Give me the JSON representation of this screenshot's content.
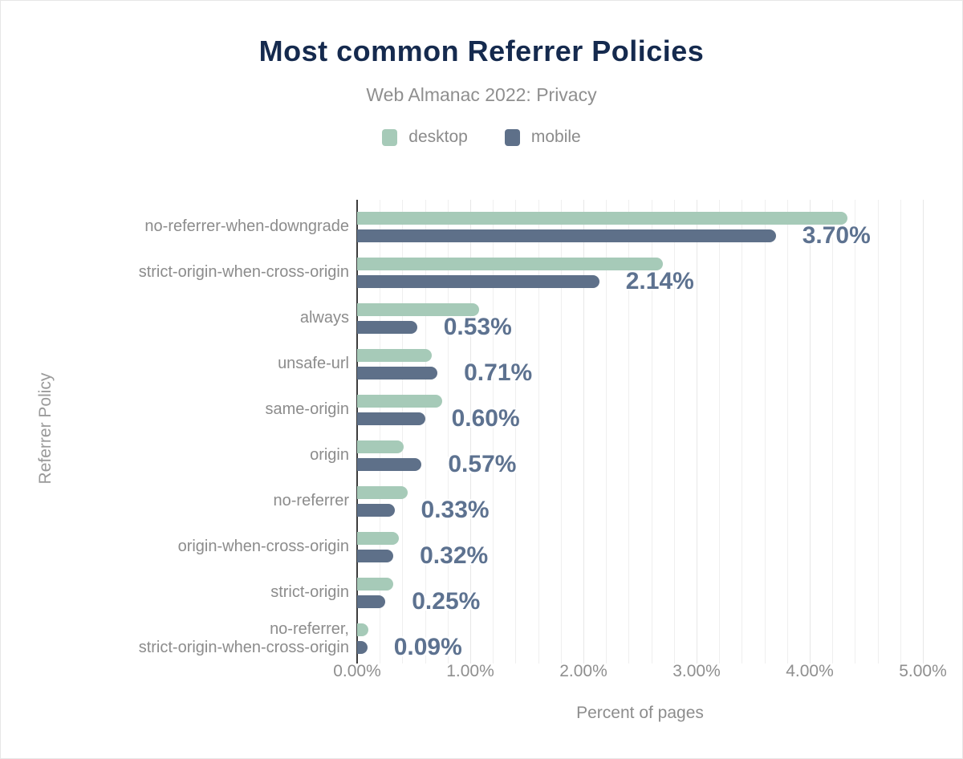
{
  "header": {
    "title": "Most common Referrer Policies",
    "subtitle": "Web Almanac 2022: Privacy"
  },
  "legend": [
    {
      "label": "desktop",
      "color": "#a6cab8"
    },
    {
      "label": "mobile",
      "color": "#5e7089"
    }
  ],
  "colors": {
    "title": "#152a4e",
    "desktop_bar": "#a6cab8",
    "mobile_bar": "#5e7089",
    "value_label": "#5d7290",
    "category_label": "#8c8c8c",
    "gridline_minor": "#efefef",
    "gridline_major": "#e7e7e7",
    "zero_axis": "#3c3c3c"
  },
  "chart_data": {
    "type": "bar",
    "orientation": "horizontal",
    "title": "Most common Referrer Policies",
    "subtitle": "Web Almanac 2022: Privacy",
    "xlabel": "Percent of pages",
    "ylabel": "Referrer Policy",
    "xlim": [
      0,
      5
    ],
    "x_ticks": [
      "0.00%",
      "1.00%",
      "2.00%",
      "3.00%",
      "4.00%",
      "5.00%"
    ],
    "x_tick_values": [
      0,
      1,
      2,
      3,
      4,
      5
    ],
    "minor_grid_step": 0.2,
    "grid": "vertical minor gridlines every 0.2%, major every 1.00%",
    "legend_position": "top center",
    "categories": [
      "no-referrer-when-downgrade",
      "strict-origin-when-cross-origin",
      "always",
      "unsafe-url",
      "same-origin",
      "origin",
      "no-referrer",
      "origin-when-cross-origin",
      "strict-origin",
      "no-referrer,\nstrict-origin-when-cross-origin"
    ],
    "series": [
      {
        "name": "desktop",
        "values": [
          4.33,
          2.7,
          1.08,
          0.66,
          0.75,
          0.41,
          0.45,
          0.37,
          0.32,
          0.1
        ]
      },
      {
        "name": "mobile",
        "values": [
          3.7,
          2.14,
          0.53,
          0.71,
          0.6,
          0.57,
          0.33,
          0.32,
          0.25,
          0.09
        ]
      }
    ],
    "bar_labels": [
      "3.70%",
      "2.14%",
      "0.53%",
      "0.71%",
      "0.60%",
      "0.57%",
      "0.33%",
      "0.32%",
      "0.25%",
      "0.09%"
    ],
    "bar_labels_series": "mobile"
  }
}
